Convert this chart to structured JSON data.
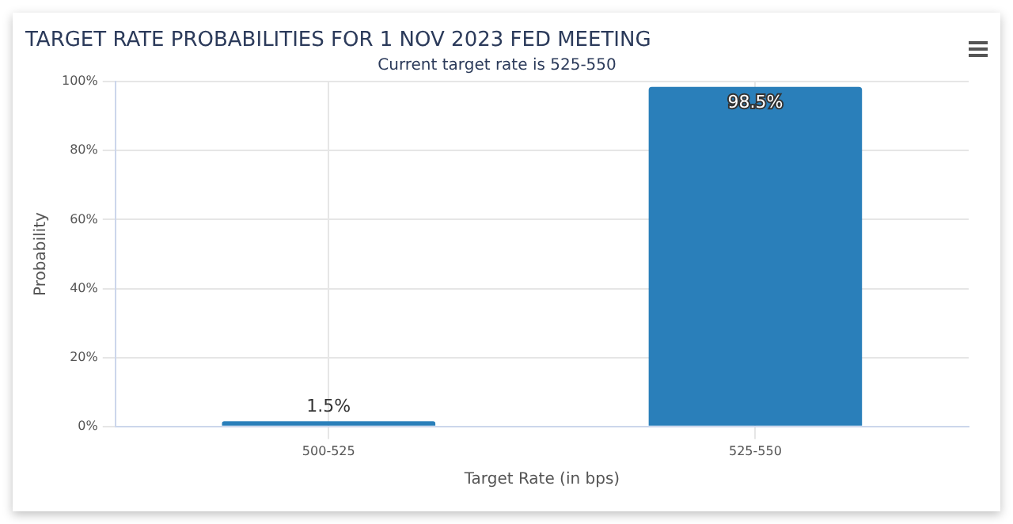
{
  "chart_data": {
    "type": "bar",
    "title": "TARGET RATE PROBABILITIES FOR 1 NOV 2023 FED MEETING",
    "subtitle": "Current target rate is 525-550",
    "xlabel": "Target Rate (in bps)",
    "ylabel": "Probability",
    "categories": [
      "500-525",
      "525-550"
    ],
    "values": [
      1.5,
      98.5
    ],
    "value_labels": [
      "1.5%",
      "98.5%"
    ],
    "color": "#2a7fba",
    "ylim": [
      0,
      100
    ],
    "yticks": [
      {
        "value": 0,
        "label": "0%"
      },
      {
        "value": 20,
        "label": "20%"
      },
      {
        "value": 40,
        "label": "40%"
      },
      {
        "value": 60,
        "label": "60%"
      },
      {
        "value": 80,
        "label": "80%"
      },
      {
        "value": 100,
        "label": "100%"
      }
    ],
    "grid": true
  }
}
